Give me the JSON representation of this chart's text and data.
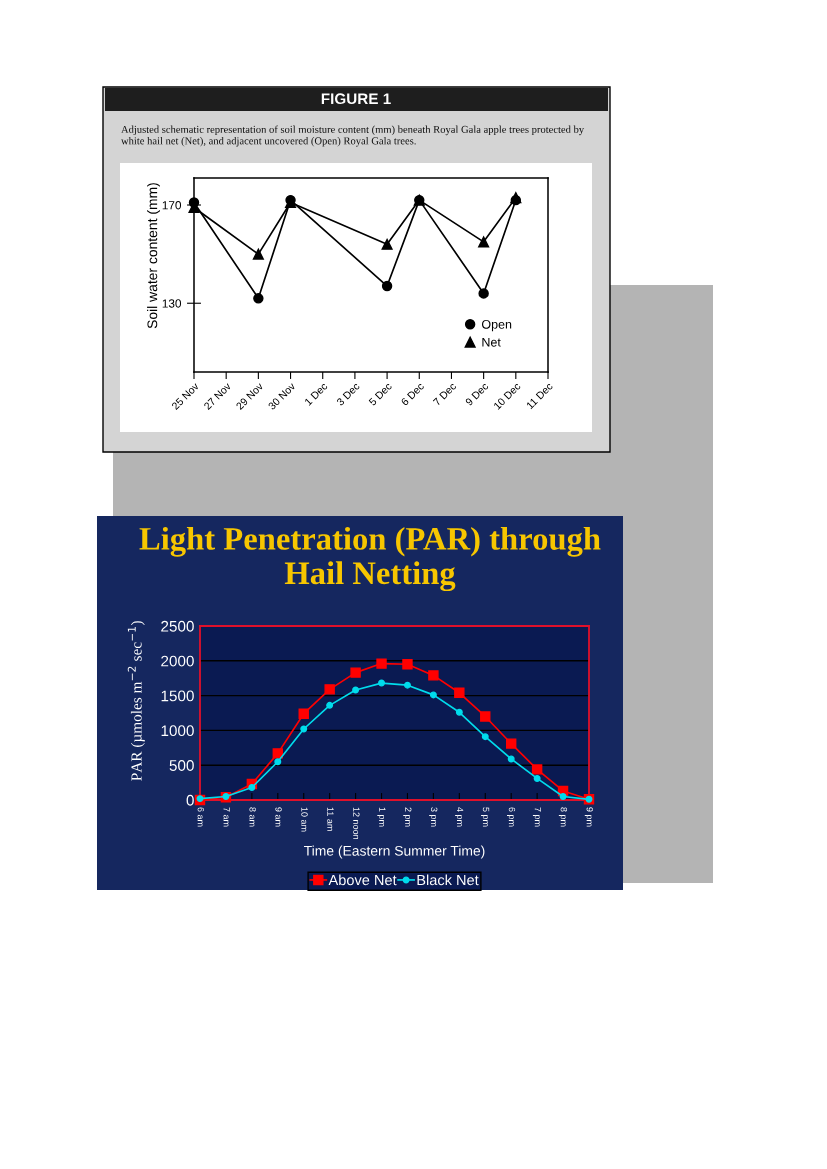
{
  "chart_data": [
    {
      "type": "line",
      "title": "FIGURE 1",
      "subtitle": "Adjusted schematic representation of soil moisture content (mm) beneath Royal Gala apple trees protected by\nwhite hail net (Net), and adjacent uncovered (Open) Royal Gala trees.",
      "ylabel": "Soil water content (mm)",
      "categories": [
        "25 Nov",
        "27 Nov",
        "29 Nov",
        "30 Nov",
        "1 Dec",
        "3 Dec",
        "5 Dec",
        "6 Dec",
        "7 Dec",
        "9 Dec",
        "10 Dec",
        "11 Dec"
      ],
      "series": [
        {
          "name": "Open",
          "color": "#000000",
          "marker": "circle",
          "values": [
            171,
            null,
            132,
            172,
            null,
            null,
            137,
            172,
            null,
            134,
            172,
            null
          ]
        },
        {
          "name": "Net",
          "color": "#000000",
          "marker": "triangle",
          "values": [
            169,
            null,
            150,
            171,
            null,
            null,
            154,
            172,
            null,
            155,
            173,
            null
          ]
        }
      ],
      "ylim": [
        102,
        181
      ],
      "yticks": [
        130,
        170
      ],
      "legend": "bottom right",
      "line_style": "solid"
    },
    {
      "type": "line",
      "title": "Light Penetration (PAR) through\nHail Netting",
      "xlabel": "Time (Eastern Summer Time)",
      "ylabel": "PAR (µmoles m$^{−2}$ sec$^{−1}$)",
      "categories": [
        "6 am",
        "7 am",
        "8 am",
        "9 am",
        "10 am",
        "11 am",
        "12 noon",
        "1 pm",
        "2 pm",
        "3 pm",
        "4 pm",
        "5 pm",
        "6 pm",
        "7 pm",
        "8 pm",
        "9 pm"
      ],
      "series": [
        {
          "name": "Above Net",
          "color": "#ff0000",
          "marker": "square",
          "values": [
            0,
            40,
            230,
            670,
            1240,
            1590,
            1830,
            1960,
            1950,
            1790,
            1540,
            1200,
            810,
            440,
            130,
            10
          ]
        },
        {
          "name": "Black Net",
          "color": "#00dcec",
          "marker": "circle",
          "values": [
            20,
            50,
            180,
            550,
            1020,
            1360,
            1580,
            1680,
            1650,
            1510,
            1260,
            910,
            590,
            310,
            50,
            10
          ]
        }
      ],
      "ylim": [
        0,
        2500
      ],
      "yticks": [
        0,
        500,
        1000,
        1500,
        2000,
        2500
      ],
      "grid": "y",
      "legend": "bottom",
      "line_style": "solid"
    }
  ]
}
